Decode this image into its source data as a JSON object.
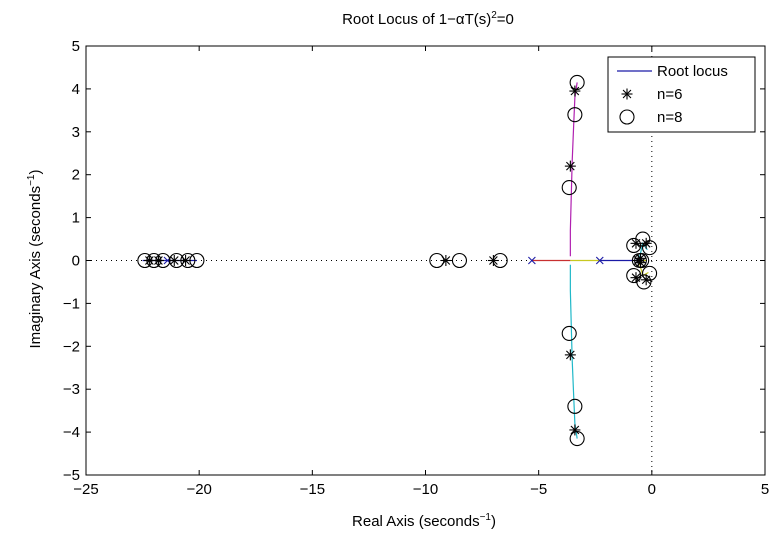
{
  "chart_data": {
    "type": "scatter",
    "title_main": "Root Locus of 1−αT(s)",
    "title_sup": "2",
    "title_tail": "=0",
    "xlabel_main": "Real Axis (seconds",
    "ylabel_main": "Imaginary Axis (seconds",
    "label_sup": "−1",
    "label_close": ")",
    "xlim": [
      -25,
      5
    ],
    "ylim": [
      -5,
      5
    ],
    "xticks": [
      -25,
      -20,
      -15,
      -10,
      -5,
      0,
      5
    ],
    "yticks": [
      -5,
      -4,
      -3,
      -2,
      -1,
      0,
      1,
      2,
      3,
      4,
      5
    ],
    "xtick_labels": [
      "−25",
      "−20",
      "−15",
      "−10",
      "−5",
      "0",
      "5"
    ],
    "ytick_labels": [
      "−5",
      "−4",
      "−3",
      "−2",
      "−1",
      "0",
      "1",
      "2",
      "3",
      "4",
      "5"
    ],
    "grid": false,
    "legend": {
      "position": "top-right",
      "entries": [
        {
          "label": "Root locus",
          "marker": "line",
          "color": "#1a1aa6"
        },
        {
          "label": "n=6",
          "marker": "asterisk",
          "color": "#000000"
        },
        {
          "label": "n=8",
          "marker": "circle",
          "color": "#000000"
        }
      ]
    },
    "poles": [
      [
        -5.3,
        0
      ],
      [
        -2.3,
        0
      ],
      [
        -21.4,
        0
      ],
      [
        -0.6,
        0
      ]
    ],
    "locus_branches": [
      {
        "color": "#b020b0",
        "points": [
          [
            -3.6,
            0.1
          ],
          [
            -3.6,
            0.7
          ],
          [
            -3.55,
            1.7
          ],
          [
            -3.52,
            2.3
          ],
          [
            -3.45,
            3.2
          ],
          [
            -3.4,
            3.8
          ],
          [
            -3.3,
            4.15
          ]
        ]
      },
      {
        "color": "#20b8c8",
        "points": [
          [
            -3.6,
            -0.1
          ],
          [
            -3.6,
            -0.7
          ],
          [
            -3.55,
            -1.7
          ],
          [
            -3.52,
            -2.3
          ],
          [
            -3.45,
            -3.2
          ],
          [
            -3.4,
            -3.8
          ],
          [
            -3.3,
            -4.15
          ]
        ]
      },
      {
        "color": "#c83030",
        "points": [
          [
            -5.3,
            0
          ],
          [
            -3.6,
            0
          ]
        ]
      },
      {
        "color": "#c8c820",
        "points": [
          [
            -3.6,
            0
          ],
          [
            -2.3,
            0
          ]
        ]
      },
      {
        "color": "#c8c820",
        "points": [
          [
            -0.6,
            0
          ],
          [
            -0.25,
            0
          ]
        ]
      },
      {
        "color": "#1a1aa6",
        "points": [
          [
            -2.3,
            0
          ],
          [
            -0.6,
            0
          ]
        ]
      },
      {
        "color": "#1a1aa6",
        "points": [
          [
            -22.5,
            0
          ],
          [
            -20.1,
            0
          ]
        ]
      },
      {
        "color": "#20b8c8",
        "points": [
          [
            -0.55,
            0.05
          ],
          [
            -0.4,
            0.4
          ],
          [
            -0.2,
            0.25
          ]
        ]
      },
      {
        "color": "#c8c820",
        "points": [
          [
            -0.55,
            -0.05
          ],
          [
            -0.4,
            -0.35
          ],
          [
            -0.15,
            -0.28
          ]
        ]
      }
    ],
    "series": [
      {
        "name": "n=6",
        "marker": "asterisk",
        "points": [
          [
            -22.2,
            0
          ],
          [
            -21.8,
            0
          ],
          [
            -21.1,
            0
          ],
          [
            -20.6,
            0
          ],
          [
            -9.1,
            0
          ],
          [
            -7.0,
            0
          ],
          [
            -3.4,
            3.95
          ],
          [
            -3.6,
            2.2
          ],
          [
            -3.6,
            -2.2
          ],
          [
            -3.4,
            -3.95
          ],
          [
            -0.7,
            0.4
          ],
          [
            -0.25,
            0.4
          ],
          [
            -0.7,
            -0.4
          ],
          [
            -0.25,
            -0.45
          ],
          [
            -0.6,
            0
          ],
          [
            -0.5,
            0.05
          ],
          [
            -0.5,
            -0.05
          ]
        ]
      },
      {
        "name": "n=8",
        "marker": "circle",
        "points": [
          [
            -22.4,
            0
          ],
          [
            -22.0,
            0
          ],
          [
            -21.6,
            0
          ],
          [
            -21.0,
            0
          ],
          [
            -20.5,
            0
          ],
          [
            -20.1,
            0
          ],
          [
            -9.5,
            0
          ],
          [
            -8.5,
            0
          ],
          [
            -6.7,
            0
          ],
          [
            -3.3,
            4.15
          ],
          [
            -3.4,
            3.4
          ],
          [
            -3.65,
            1.7
          ],
          [
            -3.65,
            -1.7
          ],
          [
            -3.4,
            -3.4
          ],
          [
            -3.3,
            -4.15
          ],
          [
            -0.8,
            0.35
          ],
          [
            -0.4,
            0.5
          ],
          [
            -0.1,
            0.3
          ],
          [
            -0.8,
            -0.35
          ],
          [
            -0.35,
            -0.5
          ],
          [
            -0.1,
            -0.3
          ],
          [
            -0.55,
            0
          ],
          [
            -0.45,
            0
          ]
        ]
      }
    ]
  }
}
